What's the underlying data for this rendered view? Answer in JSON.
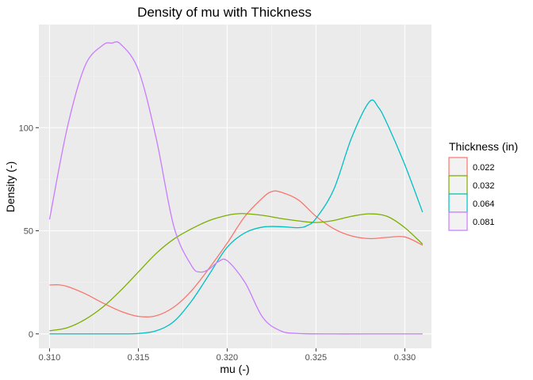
{
  "chart_data": {
    "type": "line",
    "title": "Density of mu with Thickness",
    "xlabel": "mu (-)",
    "ylabel": "Density (-)",
    "xlim": [
      0.3094,
      0.3315
    ],
    "ylim": [
      -7,
      150
    ],
    "x_ticks": [
      "0.310",
      "0.315",
      "0.320",
      "0.325",
      "0.330"
    ],
    "x_tick_values": [
      0.31,
      0.315,
      0.32,
      0.325,
      0.33
    ],
    "y_ticks": [
      "0",
      "50",
      "100"
    ],
    "y_tick_values": [
      0,
      50,
      100
    ],
    "grid": true,
    "legend": {
      "title": "Thickness (in)",
      "position": "right"
    },
    "series": [
      {
        "name": "0.022",
        "color": "#F8766D",
        "points": [
          [
            0.31,
            23.7
          ],
          [
            0.3105,
            23.8
          ],
          [
            0.311,
            23
          ],
          [
            0.312,
            19.5
          ],
          [
            0.313,
            15
          ],
          [
            0.314,
            11
          ],
          [
            0.315,
            8.5
          ],
          [
            0.316,
            8.8
          ],
          [
            0.317,
            13
          ],
          [
            0.318,
            21
          ],
          [
            0.319,
            32
          ],
          [
            0.32,
            44
          ],
          [
            0.321,
            57
          ],
          [
            0.322,
            66
          ],
          [
            0.3225,
            69
          ],
          [
            0.323,
            68.8
          ],
          [
            0.324,
            65
          ],
          [
            0.325,
            57
          ],
          [
            0.326,
            51
          ],
          [
            0.327,
            47.5
          ],
          [
            0.328,
            46.2
          ],
          [
            0.329,
            46.8
          ],
          [
            0.33,
            47
          ],
          [
            0.331,
            43
          ]
        ]
      },
      {
        "name": "0.032",
        "color": "#7CAE00",
        "points": [
          [
            0.31,
            1.5
          ],
          [
            0.311,
            3
          ],
          [
            0.312,
            7
          ],
          [
            0.313,
            13
          ],
          [
            0.314,
            21
          ],
          [
            0.315,
            30
          ],
          [
            0.316,
            39
          ],
          [
            0.317,
            46
          ],
          [
            0.318,
            51
          ],
          [
            0.319,
            55
          ],
          [
            0.32,
            57.5
          ],
          [
            0.3205,
            58.2
          ],
          [
            0.321,
            58.3
          ],
          [
            0.322,
            57.5
          ],
          [
            0.323,
            56
          ],
          [
            0.324,
            54.8
          ],
          [
            0.325,
            54
          ],
          [
            0.326,
            55
          ],
          [
            0.327,
            57
          ],
          [
            0.328,
            58.2
          ],
          [
            0.329,
            57
          ],
          [
            0.33,
            51.5
          ],
          [
            0.331,
            43.5
          ]
        ]
      },
      {
        "name": "0.064",
        "color": "#00BFC4",
        "points": [
          [
            0.31,
            0
          ],
          [
            0.312,
            0
          ],
          [
            0.314,
            0
          ],
          [
            0.315,
            0.2
          ],
          [
            0.316,
            1.5
          ],
          [
            0.317,
            6
          ],
          [
            0.318,
            16
          ],
          [
            0.319,
            29
          ],
          [
            0.32,
            42
          ],
          [
            0.321,
            49
          ],
          [
            0.322,
            51.8
          ],
          [
            0.323,
            52
          ],
          [
            0.324,
            51.5
          ],
          [
            0.3245,
            52.5
          ],
          [
            0.325,
            56
          ],
          [
            0.326,
            70
          ],
          [
            0.327,
            95
          ],
          [
            0.328,
            112.5
          ],
          [
            0.3285,
            110
          ],
          [
            0.329,
            102
          ],
          [
            0.33,
            82
          ],
          [
            0.331,
            59
          ]
        ]
      },
      {
        "name": "0.081",
        "color": "#C77CFF",
        "points": [
          [
            0.31,
            55.5
          ],
          [
            0.311,
            100
          ],
          [
            0.312,
            130
          ],
          [
            0.313,
            140
          ],
          [
            0.3135,
            141
          ],
          [
            0.314,
            140.5
          ],
          [
            0.315,
            128
          ],
          [
            0.316,
            95
          ],
          [
            0.317,
            52
          ],
          [
            0.318,
            33
          ],
          [
            0.3185,
            30
          ],
          [
            0.319,
            31.5
          ],
          [
            0.3195,
            35
          ],
          [
            0.32,
            35.5
          ],
          [
            0.321,
            25
          ],
          [
            0.322,
            8
          ],
          [
            0.323,
            1.5
          ],
          [
            0.324,
            0.2
          ],
          [
            0.326,
            0
          ],
          [
            0.328,
            0
          ],
          [
            0.331,
            0
          ]
        ]
      }
    ]
  }
}
